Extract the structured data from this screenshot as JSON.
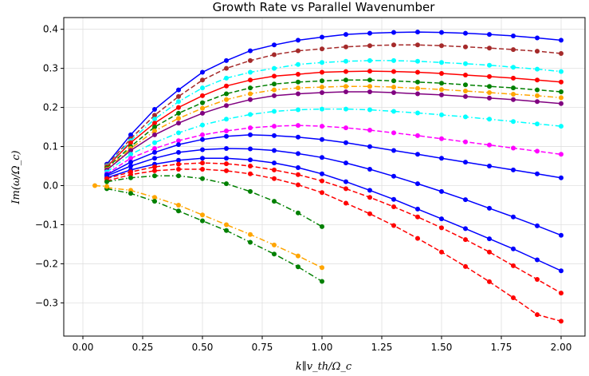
{
  "chart_data": {
    "type": "line",
    "title": "Growth Rate vs Parallel Wavenumber",
    "xlabel": "k∥v_th/Ω_c",
    "ylabel": "Im(ω/Ω_c)",
    "xlim": [
      -0.08,
      2.1
    ],
    "ylim": [
      -0.385,
      0.43
    ],
    "x_ticks": [
      0.0,
      0.25,
      0.5,
      0.75,
      1.0,
      1.25,
      1.5,
      1.75,
      2.0
    ],
    "x_tick_labels": [
      "0.00",
      "0.25",
      "0.50",
      "0.75",
      "1.00",
      "1.25",
      "1.50",
      "1.75",
      "2.00"
    ],
    "y_ticks": [
      -0.3,
      -0.2,
      -0.1,
      0.0,
      0.1,
      0.2,
      0.3,
      0.4
    ],
    "y_tick_labels": [
      "−0.3",
      "−0.2",
      "−0.1",
      "0.0",
      "0.1",
      "0.2",
      "0.3",
      "0.4"
    ],
    "grid": true,
    "x": [
      0.1,
      0.2,
      0.3,
      0.4,
      0.5,
      0.6,
      0.7,
      0.8,
      0.9,
      1.0,
      1.1,
      1.2,
      1.3,
      1.4,
      1.5,
      1.6,
      1.7,
      1.8,
      1.9,
      2.0
    ],
    "series": [
      {
        "name": "blue solid upper envelope",
        "color": "#0000ff",
        "dash": "solid",
        "values": [
          0.055,
          0.13,
          0.195,
          0.245,
          0.29,
          0.32,
          0.345,
          0.36,
          0.372,
          0.38,
          0.387,
          0.39,
          0.392,
          0.393,
          0.392,
          0.39,
          0.387,
          0.383,
          0.378,
          0.372
        ]
      },
      {
        "name": "brown dashed",
        "color": "#a52a2a",
        "dash": "dashed",
        "values": [
          0.052,
          0.12,
          0.18,
          0.228,
          0.27,
          0.3,
          0.32,
          0.335,
          0.345,
          0.35,
          0.355,
          0.358,
          0.36,
          0.36,
          0.358,
          0.355,
          0.352,
          0.348,
          0.344,
          0.338
        ]
      },
      {
        "name": "cyan dash-dot",
        "color": "#00ffff",
        "dash": "dashdot",
        "values": [
          0.05,
          0.115,
          0.17,
          0.215,
          0.25,
          0.275,
          0.29,
          0.3,
          0.31,
          0.315,
          0.318,
          0.32,
          0.32,
          0.318,
          0.315,
          0.312,
          0.308,
          0.303,
          0.298,
          0.292
        ]
      },
      {
        "name": "red solid",
        "color": "#ff0000",
        "dash": "solid",
        "values": [
          0.048,
          0.11,
          0.16,
          0.2,
          0.23,
          0.255,
          0.27,
          0.28,
          0.285,
          0.29,
          0.292,
          0.293,
          0.292,
          0.29,
          0.287,
          0.283,
          0.279,
          0.275,
          0.27,
          0.265
        ]
      },
      {
        "name": "green dashed",
        "color": "#008000",
        "dash": "dashed",
        "values": [
          0.045,
          0.1,
          0.15,
          0.185,
          0.212,
          0.235,
          0.25,
          0.26,
          0.265,
          0.268,
          0.27,
          0.27,
          0.268,
          0.265,
          0.262,
          0.258,
          0.254,
          0.25,
          0.245,
          0.24
        ]
      },
      {
        "name": "orange dash-dot",
        "color": "#ffa500",
        "dash": "dashdot",
        "values": [
          0.042,
          0.095,
          0.14,
          0.172,
          0.198,
          0.22,
          0.235,
          0.245,
          0.25,
          0.252,
          0.254,
          0.254,
          0.252,
          0.249,
          0.246,
          0.242,
          0.238,
          0.234,
          0.23,
          0.225
        ]
      },
      {
        "name": "purple solid",
        "color": "#800080",
        "dash": "solid",
        "values": [
          0.04,
          0.09,
          0.13,
          0.16,
          0.185,
          0.205,
          0.22,
          0.23,
          0.235,
          0.238,
          0.24,
          0.24,
          0.238,
          0.235,
          0.232,
          0.228,
          0.224,
          0.22,
          0.215,
          0.21
        ]
      },
      {
        "name": "cyan dash-dot lower",
        "color": "#00ffff",
        "dash": "dashdot",
        "values": [
          0.035,
          0.08,
          0.11,
          0.135,
          0.155,
          0.17,
          0.182,
          0.19,
          0.194,
          0.196,
          0.196,
          0.194,
          0.19,
          0.186,
          0.181,
          0.176,
          0.17,
          0.164,
          0.158,
          0.152
        ]
      },
      {
        "name": "magenta dashed",
        "color": "#ff00ff",
        "dash": "dashed",
        "values": [
          0.03,
          0.07,
          0.095,
          0.115,
          0.13,
          0.14,
          0.148,
          0.152,
          0.154,
          0.152,
          0.148,
          0.142,
          0.135,
          0.128,
          0.12,
          0.112,
          0.104,
          0.096,
          0.088,
          0.08
        ]
      },
      {
        "name": "blue solid mid",
        "color": "#0000ff",
        "dash": "solid",
        "values": [
          0.028,
          0.06,
          0.085,
          0.105,
          0.118,
          0.126,
          0.13,
          0.128,
          0.124,
          0.118,
          0.11,
          0.1,
          0.09,
          0.08,
          0.07,
          0.06,
          0.05,
          0.04,
          0.03,
          0.02
        ]
      },
      {
        "name": "blue solid declining",
        "color": "#0000ff",
        "dash": "solid",
        "values": [
          0.025,
          0.05,
          0.07,
          0.085,
          0.092,
          0.095,
          0.094,
          0.09,
          0.082,
          0.072,
          0.058,
          0.042,
          0.024,
          0.005,
          -0.015,
          -0.036,
          -0.058,
          -0.08,
          -0.103,
          -0.127
        ]
      },
      {
        "name": "blue solid lowest",
        "color": "#0000ff",
        "dash": "solid",
        "values": [
          0.02,
          0.04,
          0.055,
          0.065,
          0.07,
          0.07,
          0.066,
          0.058,
          0.046,
          0.03,
          0.01,
          -0.012,
          -0.035,
          -0.06,
          -0.085,
          -0.11,
          -0.136,
          -0.162,
          -0.19,
          -0.218
        ]
      },
      {
        "name": "red dashed declining",
        "color": "#ff0000",
        "dash": "dashed",
        "values": [
          0.018,
          0.035,
          0.048,
          0.055,
          0.058,
          0.056,
          0.05,
          0.04,
          0.028,
          0.012,
          -0.008,
          -0.03,
          -0.054,
          -0.08,
          -0.108,
          -0.138,
          -0.17,
          -0.205,
          -0.24,
          -0.275
        ]
      },
      {
        "name": "red dashed lowest",
        "color": "#ff0000",
        "dash": "dashed",
        "values": [
          0.012,
          0.028,
          0.038,
          0.042,
          0.042,
          0.038,
          0.03,
          0.018,
          0.002,
          -0.018,
          -0.045,
          -0.072,
          -0.102,
          -0.135,
          -0.17,
          -0.207,
          -0.246,
          -0.287,
          -0.33,
          -0.347
        ]
      },
      {
        "name": "green dash-dot",
        "color": "#008000",
        "dash": "dashdot",
        "values": [
          0.01,
          0.02,
          0.025,
          0.025,
          0.018,
          0.005,
          -0.015,
          -0.04,
          -0.07,
          -0.105,
          null,
          null,
          null,
          null,
          null,
          null,
          null,
          null,
          null,
          null
        ]
      },
      {
        "name": "orange dash-dot lowest",
        "color": "#ffa500",
        "dash": "dashdot",
        "values": [
          -0.005,
          -0.012,
          -0.03,
          -0.05,
          -0.075,
          -0.1,
          -0.125,
          -0.152,
          -0.18,
          -0.21,
          null,
          null,
          null,
          null,
          null,
          null,
          null,
          null,
          null,
          null
        ]
      },
      {
        "name": "green dash-dot lowest",
        "color": "#008000",
        "dash": "dashdot",
        "values": [
          -0.008,
          -0.02,
          -0.04,
          -0.065,
          -0.09,
          -0.115,
          -0.145,
          -0.175,
          -0.208,
          -0.245,
          null,
          null,
          null,
          null,
          null,
          null,
          null,
          null,
          null,
          null
        ]
      },
      {
        "name": "orange start",
        "color": "#ffa500",
        "dash": "dashdot",
        "x": [
          0.05,
          0.1
        ],
        "values": [
          0.0,
          -0.002
        ]
      }
    ]
  }
}
